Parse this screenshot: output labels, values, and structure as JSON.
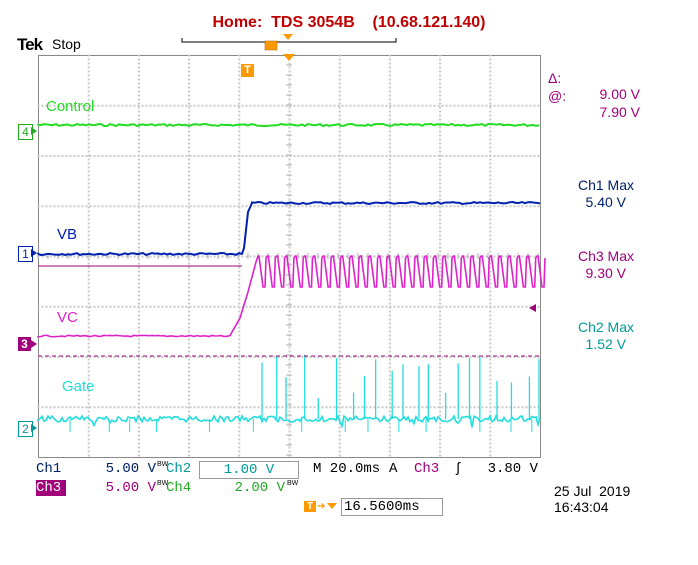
{
  "header": {
    "title": "Home:  TDS 3054B    (10.68.121.140)",
    "brand": "Tek",
    "acq_state": "Stop"
  },
  "cursor_readout": {
    "delta_label": "Δ:",
    "delta_value": "9.00 V",
    "at_label": "@:",
    "at_value": "7.90 V"
  },
  "trigger_marker": "T",
  "channels": {
    "ch4": {
      "marker": "4",
      "label": "Control",
      "color": "#22dd22"
    },
    "ch1": {
      "marker": "1",
      "label": "VB",
      "color": "#0020b0"
    },
    "ch3": {
      "marker": "3",
      "label": "VC",
      "color": "#dd22cc"
    },
    "ch2": {
      "marker": "2",
      "label": "Gate",
      "color": "#22dddd"
    }
  },
  "measurements": [
    {
      "name": "Ch1 Max",
      "value": "5.40 V",
      "color": "#00206a"
    },
    {
      "name": "Ch3 Max",
      "value": "9.30 V",
      "color": "#a0007a"
    },
    {
      "name": "Ch2 Max",
      "value": "1.52 V",
      "color": "#009a9a"
    }
  ],
  "status_bar": {
    "ch1_name": "Ch1",
    "ch1_scale": "5.00 V",
    "ch2_name": "Ch2",
    "ch2_scale": "1.00 V",
    "timebase": "M 20.0ms",
    "trig_mode": "A",
    "trig_source": "Ch3",
    "trig_slope": "ʃ",
    "trig_level": "3.80 V",
    "ch3_name": "Ch3",
    "ch3_scale": "5.00 V",
    "ch4_name": "Ch4",
    "ch4_scale": "2.00 V",
    "bw_tag": "BW",
    "horiz_position": "16.5600ms"
  },
  "timestamp": {
    "date": "25 Jul  2019",
    "time": "16:43:04"
  }
}
